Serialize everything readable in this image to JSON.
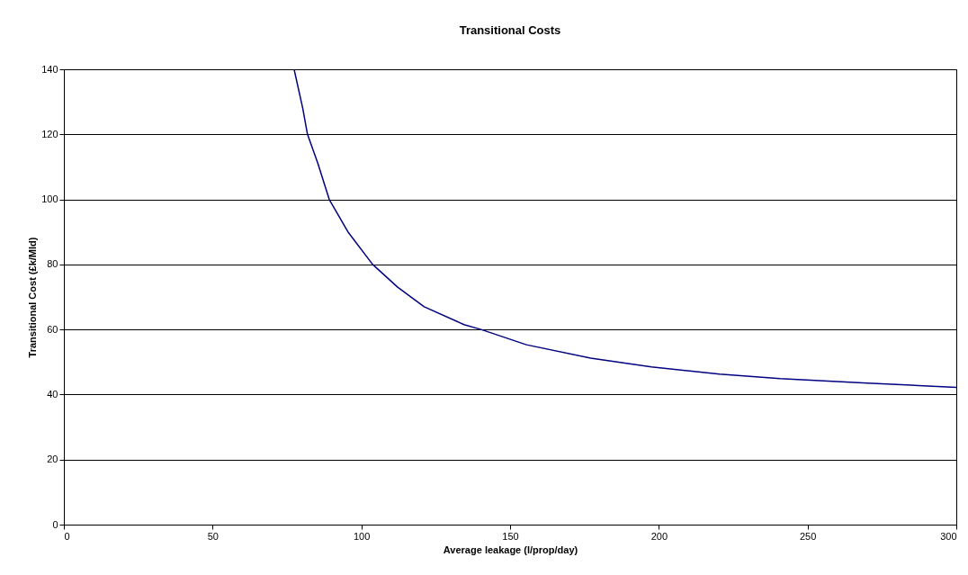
{
  "chart_data": {
    "type": "line",
    "title": "Transitional Costs",
    "xlabel": "Average leakage (l/prop/day)",
    "ylabel": "Transitional Cost (£k/Mld)",
    "series": [
      {
        "color": "#000080",
        "x": [
          77.4,
          80.3,
          81.9,
          85.4,
          89.2,
          95.5,
          103.8,
          112.2,
          121.1,
          134.5,
          140.2,
          155.5,
          177.1,
          197.5,
          220.4,
          240.8,
          270.1,
          300
        ],
        "values": [
          140,
          128,
          120,
          111,
          100,
          90,
          80,
          73,
          67,
          61.5,
          60,
          55.3,
          51.2,
          48.5,
          46.3,
          44.9,
          43.5,
          42.2
        ]
      }
    ],
    "xlim": [
      0,
      300
    ],
    "xticks": [
      0,
      50,
      100,
      150,
      200,
      250,
      300
    ],
    "ylim": [
      0,
      140
    ],
    "yticks": [
      0,
      20,
      40,
      60,
      80,
      100,
      120,
      140
    ],
    "grid": "y",
    "marker": "none",
    "line_style": "solid"
  }
}
